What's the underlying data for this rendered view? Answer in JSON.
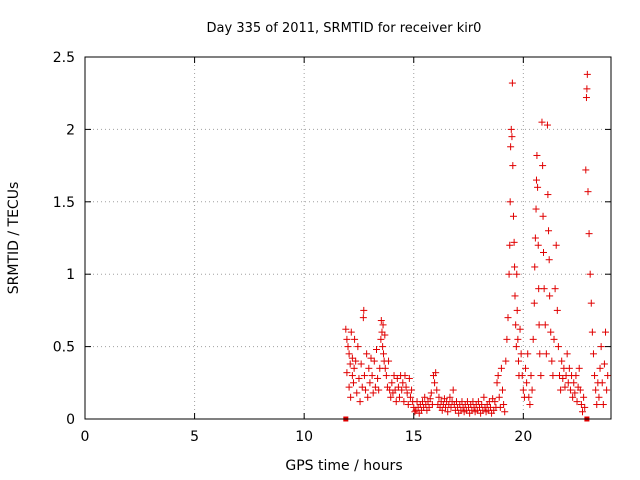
{
  "chart_data": {
    "type": "scatter",
    "title": "Day 335 of 2011, SRMTID for receiver kir0",
    "xlabel": "GPS time / hours",
    "ylabel": "SRMTID / TECUs",
    "xlim": [
      0,
      24
    ],
    "ylim": [
      0,
      2.5
    ],
    "xticks": [
      "0",
      "5",
      "10",
      "15",
      "20"
    ],
    "xtick_values": [
      0,
      5,
      10,
      15,
      20
    ],
    "yticks": [
      "0",
      "0.5",
      "1",
      "1.5",
      "2",
      "2.5"
    ],
    "ytick_values": [
      0,
      0.5,
      1,
      1.5,
      2,
      2.5
    ],
    "grid": true,
    "marker": "plus",
    "color": "#e00000",
    "square_markers": [
      {
        "x": 11.9,
        "y": 0.0
      },
      {
        "x": 22.9,
        "y": 0.0
      }
    ],
    "series": [
      {
        "name": "SRMTID",
        "points": [
          [
            11.9,
            0.62
          ],
          [
            11.95,
            0.55
          ],
          [
            12.0,
            0.5
          ],
          [
            12.05,
            0.45
          ],
          [
            12.1,
            0.38
          ],
          [
            12.15,
            0.6
          ],
          [
            12.2,
            0.3
          ],
          [
            12.25,
            0.25
          ],
          [
            12.3,
            0.55
          ],
          [
            12.35,
            0.4
          ],
          [
            11.95,
            0.32
          ],
          [
            12.05,
            0.22
          ],
          [
            12.12,
            0.15
          ],
          [
            12.2,
            0.42
          ],
          [
            12.28,
            0.35
          ],
          [
            12.4,
            0.18
          ],
          [
            12.45,
            0.5
          ],
          [
            12.5,
            0.28
          ],
          [
            12.55,
            0.12
          ],
          [
            12.6,
            0.38
          ],
          [
            12.65,
            0.22
          ],
          [
            12.7,
            0.7
          ],
          [
            12.72,
            0.75
          ],
          [
            12.75,
            0.3
          ],
          [
            12.8,
            0.2
          ],
          [
            12.85,
            0.45
          ],
          [
            12.9,
            0.15
          ],
          [
            12.95,
            0.35
          ],
          [
            13.0,
            0.25
          ],
          [
            13.05,
            0.42
          ],
          [
            13.1,
            0.3
          ],
          [
            13.15,
            0.18
          ],
          [
            13.2,
            0.4
          ],
          [
            13.25,
            0.22
          ],
          [
            13.3,
            0.48
          ],
          [
            13.35,
            0.28
          ],
          [
            13.4,
            0.2
          ],
          [
            13.45,
            0.35
          ],
          [
            13.5,
            0.55
          ],
          [
            13.52,
            0.68
          ],
          [
            13.55,
            0.6
          ],
          [
            13.58,
            0.5
          ],
          [
            13.6,
            0.65
          ],
          [
            13.62,
            0.45
          ],
          [
            13.65,
            0.4
          ],
          [
            13.68,
            0.58
          ],
          [
            13.7,
            0.35
          ],
          [
            13.75,
            0.3
          ],
          [
            13.8,
            0.22
          ],
          [
            13.85,
            0.4
          ],
          [
            13.9,
            0.2
          ],
          [
            13.95,
            0.15
          ],
          [
            14.0,
            0.25
          ],
          [
            14.05,
            0.18
          ],
          [
            14.1,
            0.3
          ],
          [
            14.15,
            0.2
          ],
          [
            14.2,
            0.12
          ],
          [
            14.25,
            0.28
          ],
          [
            14.3,
            0.22
          ],
          [
            14.35,
            0.15
          ],
          [
            14.4,
            0.3
          ],
          [
            14.45,
            0.2
          ],
          [
            14.5,
            0.25
          ],
          [
            14.55,
            0.12
          ],
          [
            14.6,
            0.3
          ],
          [
            14.65,
            0.22
          ],
          [
            14.7,
            0.18
          ],
          [
            14.75,
            0.1
          ],
          [
            14.8,
            0.28
          ],
          [
            14.85,
            0.15
          ],
          [
            14.9,
            0.2
          ],
          [
            14.95,
            0.12
          ],
          [
            15.0,
            0.08
          ],
          [
            15.05,
            0.05
          ],
          [
            15.1,
            0.06
          ],
          [
            15.15,
            0.12
          ],
          [
            15.2,
            0.08
          ],
          [
            15.25,
            0.04
          ],
          [
            15.3,
            0.1
          ],
          [
            15.35,
            0.06
          ],
          [
            15.4,
            0.12
          ],
          [
            15.45,
            0.08
          ],
          [
            15.5,
            0.15
          ],
          [
            15.55,
            0.1
          ],
          [
            15.6,
            0.06
          ],
          [
            15.65,
            0.12
          ],
          [
            15.7,
            0.08
          ],
          [
            15.75,
            0.14
          ],
          [
            15.8,
            0.18
          ],
          [
            15.85,
            0.1
          ],
          [
            15.9,
            0.3
          ],
          [
            15.95,
            0.25
          ],
          [
            16.0,
            0.32
          ],
          [
            16.05,
            0.2
          ],
          [
            16.1,
            0.1
          ],
          [
            16.15,
            0.15
          ],
          [
            16.2,
            0.08
          ],
          [
            16.25,
            0.12
          ],
          [
            16.3,
            0.06
          ],
          [
            16.35,
            0.1
          ],
          [
            16.4,
            0.14
          ],
          [
            16.45,
            0.08
          ],
          [
            16.5,
            0.12
          ],
          [
            16.55,
            0.05
          ],
          [
            16.6,
            0.1
          ],
          [
            16.65,
            0.15
          ],
          [
            16.7,
            0.08
          ],
          [
            16.75,
            0.12
          ],
          [
            16.8,
            0.2
          ],
          [
            16.85,
            0.1
          ],
          [
            16.9,
            0.06
          ],
          [
            16.95,
            0.12
          ],
          [
            17.0,
            0.08
          ],
          [
            17.05,
            0.04
          ],
          [
            17.1,
            0.1
          ],
          [
            17.15,
            0.06
          ],
          [
            17.2,
            0.12
          ],
          [
            17.25,
            0.08
          ],
          [
            17.3,
            0.05
          ],
          [
            17.35,
            0.1
          ],
          [
            17.4,
            0.06
          ],
          [
            17.45,
            0.12
          ],
          [
            17.5,
            0.08
          ],
          [
            17.55,
            0.04
          ],
          [
            17.6,
            0.1
          ],
          [
            17.65,
            0.06
          ],
          [
            17.7,
            0.12
          ],
          [
            17.75,
            0.08
          ],
          [
            17.8,
            0.05
          ],
          [
            17.85,
            0.1
          ],
          [
            17.9,
            0.06
          ],
          [
            17.95,
            0.12
          ],
          [
            18.0,
            0.08
          ],
          [
            18.05,
            0.04
          ],
          [
            18.1,
            0.1
          ],
          [
            18.15,
            0.06
          ],
          [
            18.2,
            0.15
          ],
          [
            18.25,
            0.08
          ],
          [
            18.3,
            0.05
          ],
          [
            18.35,
            0.1
          ],
          [
            18.4,
            0.06
          ],
          [
            18.45,
            0.12
          ],
          [
            18.5,
            0.08
          ],
          [
            18.55,
            0.04
          ],
          [
            18.6,
            0.14
          ],
          [
            18.65,
            0.06
          ],
          [
            18.7,
            0.12
          ],
          [
            18.75,
            0.08
          ],
          [
            18.8,
            0.25
          ],
          [
            18.85,
            0.3
          ],
          [
            18.9,
            0.15
          ],
          [
            18.95,
            0.08
          ],
          [
            19.0,
            0.35
          ],
          [
            19.05,
            0.2
          ],
          [
            19.1,
            0.1
          ],
          [
            19.15,
            0.05
          ],
          [
            19.2,
            0.4
          ],
          [
            19.25,
            0.55
          ],
          [
            19.3,
            0.7
          ],
          [
            19.35,
            1.0
          ],
          [
            19.38,
            1.2
          ],
          [
            19.4,
            1.5
          ],
          [
            19.42,
            1.88
          ],
          [
            19.45,
            2.0
          ],
          [
            19.48,
            1.95
          ],
          [
            19.5,
            2.32
          ],
          [
            19.52,
            1.75
          ],
          [
            19.55,
            1.4
          ],
          [
            19.58,
            1.22
          ],
          [
            19.6,
            1.05
          ],
          [
            19.62,
            0.85
          ],
          [
            19.65,
            0.65
          ],
          [
            19.68,
            0.5
          ],
          [
            19.7,
            1.0
          ],
          [
            19.72,
            0.75
          ],
          [
            19.75,
            0.55
          ],
          [
            19.78,
            0.4
          ],
          [
            19.8,
            0.3
          ],
          [
            19.85,
            0.62
          ],
          [
            19.9,
            0.45
          ],
          [
            19.95,
            0.3
          ],
          [
            20.0,
            0.2
          ],
          [
            20.05,
            0.15
          ],
          [
            20.1,
            0.35
          ],
          [
            20.15,
            0.25
          ],
          [
            20.2,
            0.45
          ],
          [
            20.25,
            0.15
          ],
          [
            20.3,
            0.1
          ],
          [
            20.35,
            0.3
          ],
          [
            20.4,
            0.2
          ],
          [
            20.45,
            0.55
          ],
          [
            20.5,
            0.8
          ],
          [
            20.52,
            1.05
          ],
          [
            20.55,
            1.25
          ],
          [
            20.58,
            1.45
          ],
          [
            20.6,
            1.65
          ],
          [
            20.62,
            1.82
          ],
          [
            20.65,
            1.6
          ],
          [
            20.68,
            1.2
          ],
          [
            20.7,
            0.9
          ],
          [
            20.72,
            0.65
          ],
          [
            20.75,
            0.45
          ],
          [
            20.8,
            0.3
          ],
          [
            20.85,
            2.05
          ],
          [
            20.88,
            1.75
          ],
          [
            20.9,
            1.4
          ],
          [
            20.92,
            1.15
          ],
          [
            20.95,
            0.9
          ],
          [
            21.0,
            0.65
          ],
          [
            21.05,
            0.45
          ],
          [
            21.1,
            2.03
          ],
          [
            21.12,
            1.55
          ],
          [
            21.15,
            1.3
          ],
          [
            21.18,
            1.1
          ],
          [
            21.2,
            0.85
          ],
          [
            21.25,
            0.6
          ],
          [
            21.3,
            0.4
          ],
          [
            21.35,
            0.3
          ],
          [
            21.4,
            0.55
          ],
          [
            21.45,
            0.9
          ],
          [
            21.5,
            1.2
          ],
          [
            21.55,
            0.75
          ],
          [
            21.6,
            0.5
          ],
          [
            21.65,
            0.3
          ],
          [
            21.7,
            0.2
          ],
          [
            21.75,
            0.4
          ],
          [
            21.8,
            0.28
          ],
          [
            21.85,
            0.35
          ],
          [
            21.9,
            0.22
          ],
          [
            21.95,
            0.3
          ],
          [
            22.0,
            0.45
          ],
          [
            22.05,
            0.25
          ],
          [
            22.1,
            0.35
          ],
          [
            22.15,
            0.2
          ],
          [
            22.2,
            0.3
          ],
          [
            22.25,
            0.15
          ],
          [
            22.3,
            0.25
          ],
          [
            22.35,
            0.18
          ],
          [
            22.4,
            0.3
          ],
          [
            22.45,
            0.12
          ],
          [
            22.5,
            0.22
          ],
          [
            22.55,
            0.35
          ],
          [
            22.6,
            0.2
          ],
          [
            22.65,
            0.1
          ],
          [
            22.7,
            0.05
          ],
          [
            22.75,
            0.15
          ],
          [
            22.8,
            0.08
          ],
          [
            22.85,
            1.72
          ],
          [
            22.88,
            2.22
          ],
          [
            22.9,
            2.28
          ],
          [
            22.92,
            2.38
          ],
          [
            22.95,
            1.57
          ],
          [
            23.0,
            1.28
          ],
          [
            23.05,
            1.0
          ],
          [
            23.1,
            0.8
          ],
          [
            23.15,
            0.6
          ],
          [
            23.2,
            0.45
          ],
          [
            23.25,
            0.3
          ],
          [
            23.3,
            0.2
          ],
          [
            23.35,
            0.1
          ],
          [
            23.4,
            0.25
          ],
          [
            23.45,
            0.15
          ],
          [
            23.5,
            0.35
          ],
          [
            23.55,
            0.5
          ],
          [
            23.6,
            0.25
          ],
          [
            23.65,
            0.1
          ],
          [
            23.7,
            0.38
          ],
          [
            23.75,
            0.6
          ],
          [
            23.8,
            0.2
          ],
          [
            23.85,
            0.3
          ]
        ]
      }
    ]
  }
}
